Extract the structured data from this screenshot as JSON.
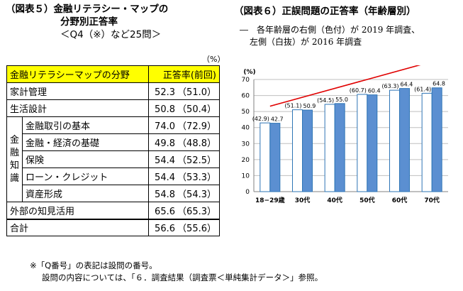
{
  "left": {
    "title_line1": "（図表５）金融リテラシー・マップの",
    "title_line2": "分野別正答率",
    "title_line3": "＜Q4（※）など25問＞",
    "unit": "（%）",
    "header": {
      "field": "金融リテラシーマップの分野",
      "rate": "正答率(前回)"
    },
    "rows": [
      {
        "label": "家計管理",
        "value": "52.3",
        "prev": "（51.0）"
      },
      {
        "label": "生活設計",
        "value": "50.8",
        "prev": "（50.4）"
      }
    ],
    "group_label": "金融知識",
    "group_chars": [
      "金",
      "融",
      "知",
      "識"
    ],
    "group_rows": [
      {
        "label": "金融取引の基本",
        "value": "74.0",
        "prev": "（72.9）"
      },
      {
        "label": "金融・経済の基礎",
        "value": "49.8",
        "prev": "（48.8）"
      },
      {
        "label": "保険",
        "value": "54.4",
        "prev": "（52.5）"
      },
      {
        "label": "ローン・クレジット",
        "value": "54.4",
        "prev": "（53.3）"
      },
      {
        "label": "資産形成",
        "value": "54.8",
        "prev": "（54.3）"
      }
    ],
    "rows_after": [
      {
        "label": "外部の知見活用",
        "value": "65.6",
        "prev": "（65.3）"
      },
      {
        "label": "合計",
        "value": "56.6",
        "prev": "（55.6）"
      }
    ],
    "footnote_line1": "※「Q番号」の表記は設問の番号。",
    "footnote_line2": "設問の内容については、「６．調査結果（調査票＜単純集計データ＞」参照。"
  },
  "right": {
    "title": "（図表６）正誤問題の正答率（年齢層別）",
    "note_line1": "―　各年齢層の右側（色付）が 2019 年調査、",
    "note_line2": "左側（白抜）が 2016 年調査"
  },
  "chart_data": {
    "type": "bar",
    "unit_label": "(%)",
    "categories": [
      "18−29歳",
      "30代",
      "40代",
      "50代",
      "60代",
      "70代"
    ],
    "series": [
      {
        "values": [
          42.9,
          51.1,
          54.5,
          60.7,
          63.3,
          61.4
        ],
        "labels": [
          "(42.9)",
          "(51.1)",
          "(54.5)",
          "(60.7)",
          "(63.3)",
          "(61.4)"
        ],
        "fill": "#ffffff",
        "stroke": "#2e75b6"
      },
      {
        "values": [
          42.7,
          50.9,
          55.0,
          60.4,
          64.4,
          64.8
        ],
        "labels": [
          "42.7",
          "50.9",
          "55.0",
          "60.4",
          "64.4",
          "64.8"
        ],
        "fill": "#5b8fd1",
        "stroke": "#2e75b6"
      }
    ],
    "ylim": [
      0,
      70
    ],
    "yticks": [
      0,
      10,
      20,
      30,
      40,
      50,
      60,
      70
    ],
    "grid": true,
    "trend_arrow": {
      "color": "#e00000"
    }
  }
}
